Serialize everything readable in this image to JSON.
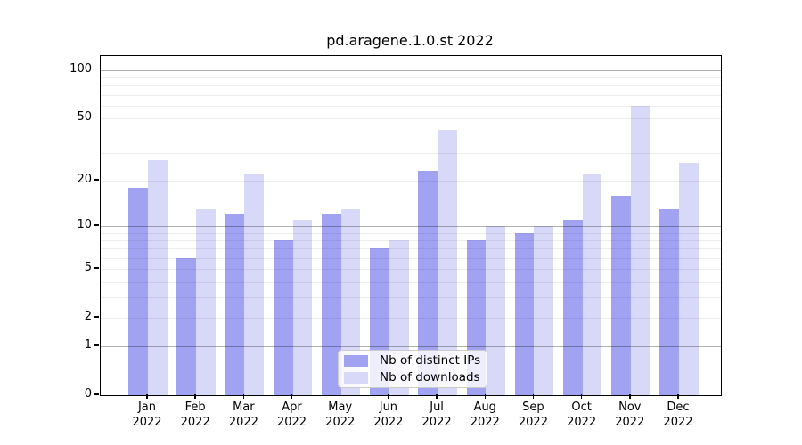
{
  "title": "pd.aragene.1.0.st 2022",
  "accent_colors": {
    "distinct_ips": "#a2a2f3",
    "downloads": "#d8d8f8"
  },
  "legend": {
    "items": [
      {
        "label": "Nb of distinct IPs",
        "color": "#a2a2f3"
      },
      {
        "label": "Nb of downloads",
        "color": "#d8d8f8"
      }
    ]
  },
  "chart_data": {
    "type": "bar",
    "title": "pd.aragene.1.0.st 2022",
    "categories": [
      "Jan",
      "Feb",
      "Mar",
      "Apr",
      "May",
      "Jun",
      "Jul",
      "Aug",
      "Sep",
      "Oct",
      "Nov",
      "Dec"
    ],
    "category_year": "2022",
    "series": [
      {
        "name": "Nb of distinct IPs",
        "color": "#a2a2f3",
        "values": [
          18,
          6,
          12,
          8,
          12,
          7,
          23,
          8,
          9,
          11,
          16,
          13
        ]
      },
      {
        "name": "Nb of downloads",
        "color": "#d8d8f8",
        "values": [
          27,
          13,
          22,
          11,
          13,
          8,
          42,
          10,
          10,
          22,
          60,
          26
        ]
      }
    ],
    "xlabel": "",
    "ylabel": "",
    "yscale": "log1p",
    "ylim": [
      0,
      122
    ],
    "yticks": [
      100,
      50,
      20,
      10,
      5,
      2,
      1,
      0
    ],
    "ytick_labels": [
      "100",
      "50",
      "20",
      "10",
      "5",
      "2",
      "1",
      "0"
    ],
    "major_gridlines": [
      1,
      10,
      100
    ],
    "minor_gridlines": [
      2,
      3,
      4,
      5,
      6,
      7,
      8,
      9,
      20,
      30,
      40,
      50,
      60,
      70,
      80,
      90
    ],
    "grid": true,
    "legend_position": "lower center"
  }
}
